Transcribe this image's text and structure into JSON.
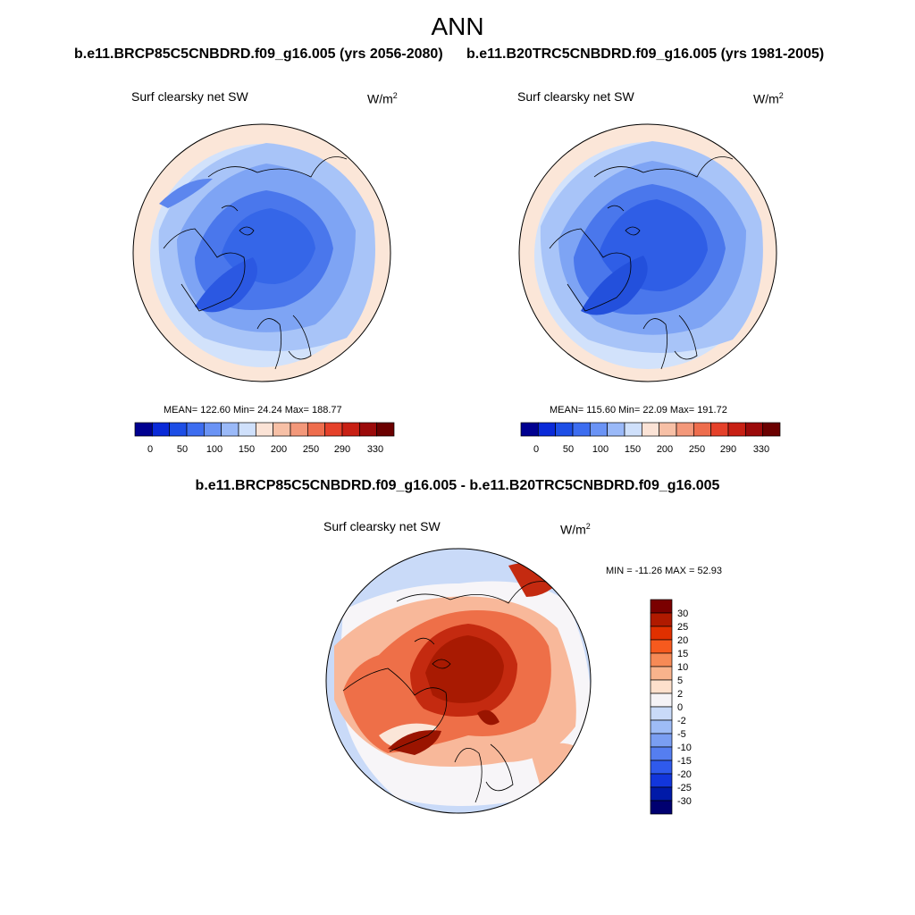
{
  "header": {
    "title": "ANN",
    "case1": "b.e11.BRCP85C5CNBDRD.f09_g16.005 (yrs 2056-2080)",
    "case2": "b.e11.B20TRC5CNBDRD.f09_g16.005 (yrs 1981-2005)",
    "diff_title": "b.e11.BRCP85C5CNBDRD.f09_g16.005 - b.e11.B20TRC5CNBDRD.f09_g16.005"
  },
  "panels": {
    "p1": {
      "variable": "Surf clearsky net SW",
      "unit": "W/m",
      "unit_sup": "2",
      "stats": "MEAN= 122.60  Min=  24.24  Max= 188.77"
    },
    "p2": {
      "variable": "Surf clearsky net SW",
      "unit": "W/m",
      "unit_sup": "2",
      "stats": "MEAN= 115.60  Min=  22.09  Max= 191.72"
    },
    "p3": {
      "variable": "Surf clearsky net SW",
      "unit": "W/m",
      "unit_sup": "2",
      "stats": "MIN = -11.26 MAX =  52.93"
    }
  },
  "chart_data": [
    {
      "type": "heatmap",
      "projection": "north-polar-stereographic",
      "title": "Surf clearsky net SW",
      "units": "W/m2",
      "mean": 122.6,
      "min": 24.24,
      "max": 188.77,
      "colorbar": {
        "orientation": "horizontal",
        "levels": [
          0,
          50,
          100,
          150,
          200,
          250,
          290,
          330
        ],
        "colors": [
          "#000090",
          "#0a2ad8",
          "#1d4ee6",
          "#3d6df0",
          "#6a93f5",
          "#9ab9f8",
          "#cfe0fb",
          "#fbe3d6",
          "#f7c0a6",
          "#f3987a",
          "#ee6d4d",
          "#e5412a",
          "#c82014",
          "#9b0a0a",
          "#6b0000"
        ],
        "labels": [
          "0",
          "50",
          "100",
          "150",
          "200",
          "250",
          "290",
          "330"
        ]
      }
    },
    {
      "type": "heatmap",
      "projection": "north-polar-stereographic",
      "title": "Surf clearsky net SW",
      "units": "W/m2",
      "mean": 115.6,
      "min": 22.09,
      "max": 191.72,
      "colorbar": {
        "orientation": "horizontal",
        "levels": [
          0,
          50,
          100,
          150,
          200,
          250,
          290,
          330
        ],
        "colors": [
          "#000090",
          "#0a2ad8",
          "#1d4ee6",
          "#3d6df0",
          "#6a93f5",
          "#9ab9f8",
          "#cfe0fb",
          "#fbe3d6",
          "#f7c0a6",
          "#f3987a",
          "#ee6d4d",
          "#e5412a",
          "#c82014",
          "#9b0a0a",
          "#6b0000"
        ],
        "labels": [
          "0",
          "50",
          "100",
          "150",
          "200",
          "250",
          "290",
          "330"
        ]
      }
    },
    {
      "type": "heatmap",
      "projection": "north-polar-stereographic",
      "title": "Surf clearsky net SW",
      "units": "W/m2",
      "min": -11.26,
      "max": 52.93,
      "colorbar": {
        "orientation": "vertical",
        "labels": [
          "30",
          "25",
          "20",
          "15",
          "10",
          "5",
          "2",
          "0",
          "-2",
          "-5",
          "-10",
          "-15",
          "-20",
          "-25",
          "-30"
        ],
        "colors": [
          "#7a0000",
          "#b01a00",
          "#e03000",
          "#f65a1e",
          "#f68a56",
          "#f8b38c",
          "#fde0cc",
          "#f5f3f6",
          "#c9daf8",
          "#9ebcf6",
          "#7a9ef2",
          "#557ef0",
          "#2f5aec",
          "#1236dc",
          "#001aa8",
          "#000070"
        ]
      }
    }
  ],
  "map_colors": {
    "ocean_far": "#fbe6d8",
    "ring_mid": "#d2e2fb",
    "ring_blue": "#a8c4f8",
    "mid_blue": "#7ea4f4",
    "deep_blue": "#4a77ec",
    "deepest_blue": "#2b58e2",
    "diff_base": "#f7f5f8",
    "diff_lightblue": "#c6d8f8",
    "diff_lightred": "#f8b89a",
    "diff_red": "#ee6f48",
    "diff_darkred": "#c42a10",
    "diff_deepred": "#9a1400"
  }
}
